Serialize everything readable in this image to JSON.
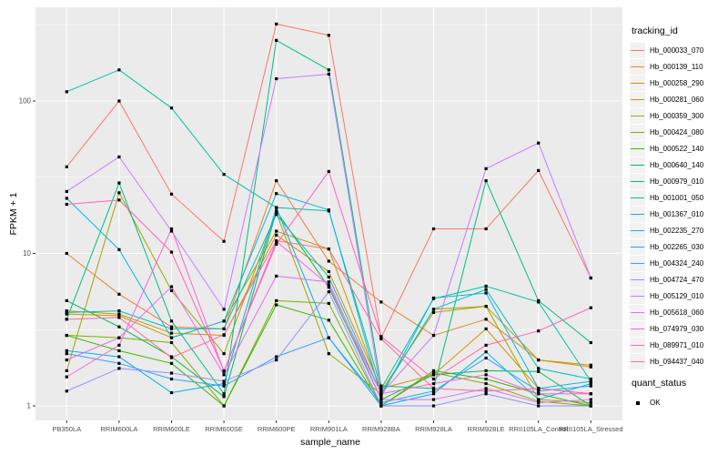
{
  "chart_data": {
    "type": "line",
    "title": "",
    "xlabel": "sample_name",
    "ylabel": "FPKM + 1",
    "y_scale": "log10",
    "y_ticks": [
      1,
      10,
      100
    ],
    "y_minor_ticks": [
      3.162,
      31.62,
      316.2
    ],
    "ylim": [
      0.93,
      420
    ],
    "grid": "on",
    "legend_title": "tracking_id",
    "legend_position": "right",
    "categories": [
      "PB350LA",
      "RRIM600LA",
      "RRIM600LE",
      "RRIM600SE",
      "RRIM600PE",
      "RRIM901LA",
      "RRIM928BA",
      "RRIM928LA",
      "RRIM928LE",
      "RRII105LA_Control",
      "RRII105LA_Stressed"
    ],
    "series": [
      {
        "name": "Hb_000033_070",
        "color": "#F8766D",
        "values": [
          37,
          100,
          24.5,
          12,
          320,
          270,
          2.8,
          14.5,
          14.5,
          35,
          6.9
        ]
      },
      {
        "name": "Hb_000139_110",
        "color": "#EA8331",
        "values": [
          10,
          5.4,
          3.3,
          3.2,
          30,
          8.9,
          4.8,
          2.9,
          3.7,
          2.0,
          1.8
        ]
      },
      {
        "name": "Hb_000258_290",
        "color": "#D89000",
        "values": [
          4.2,
          4.0,
          3.0,
          2.9,
          13.2,
          7.6,
          1.3,
          1.6,
          3.2,
          1.3,
          1.2
        ]
      },
      {
        "name": "Hb_000281_060",
        "color": "#C09B00",
        "values": [
          4.0,
          3.9,
          2.8,
          3.6,
          14,
          10.7,
          1.25,
          4.1,
          4.5,
          2.0,
          1.85
        ]
      },
      {
        "name": "Hb_000359_300",
        "color": "#A3A500",
        "values": [
          1.7,
          25,
          5.7,
          2.2,
          18.5,
          2.2,
          1.2,
          4.3,
          4.5,
          1.1,
          1.05
        ]
      },
      {
        "name": "Hb_000424_080",
        "color": "#7CAE00",
        "values": [
          2.9,
          2.8,
          2.6,
          1.0,
          4.9,
          4.7,
          1.0,
          1.65,
          1.4,
          1.07,
          1.0
        ]
      },
      {
        "name": "Hb_000522_140",
        "color": "#39B600",
        "values": [
          2.9,
          2.3,
          1.9,
          1.0,
          4.6,
          3.65,
          1.0,
          1.7,
          1.5,
          1.2,
          1.0
        ]
      },
      {
        "name": "Hb_000640_140",
        "color": "#00BB4E",
        "values": [
          4.9,
          3.3,
          2.1,
          1.15,
          19,
          6.0,
          1.1,
          1.6,
          1.7,
          1.68,
          1.0
        ]
      },
      {
        "name": "Hb_000979_010",
        "color": "#00BF7D",
        "values": [
          3.7,
          29,
          3.6,
          1.2,
          250,
          160,
          1.35,
          1.3,
          30,
          4.9,
          2.6
        ]
      },
      {
        "name": "Hb_001001_050",
        "color": "#00C1A3",
        "values": [
          115,
          160,
          90,
          33,
          20,
          19,
          1.3,
          5.05,
          6.1,
          4.8,
          1.45
        ]
      },
      {
        "name": "Hb_001367_010",
        "color": "#00BFC4",
        "values": [
          4.1,
          4.2,
          3.2,
          3.2,
          18,
          7.0,
          1.2,
          4.3,
          5.8,
          1.76,
          1.5
        ]
      },
      {
        "name": "Hb_002235_270",
        "color": "#00BAE0",
        "values": [
          23,
          10.6,
          2.8,
          3.6,
          24.7,
          19.3,
          1.15,
          5.1,
          5.5,
          1.3,
          1.45
        ]
      },
      {
        "name": "Hb_002265_030",
        "color": "#00B0F6",
        "values": [
          2.3,
          2.1,
          1.22,
          1.4,
          20,
          2.8,
          1.0,
          1.2,
          2.26,
          1.1,
          1.4
        ]
      },
      {
        "name": "Hb_004324_240",
        "color": "#35A2FF",
        "values": [
          2.2,
          1.9,
          1.5,
          1.35,
          2.1,
          2.8,
          1.05,
          1.25,
          2.06,
          1.25,
          1.35
        ]
      },
      {
        "name": "Hb_004724_470",
        "color": "#9590FF",
        "values": [
          1.25,
          1.76,
          1.64,
          1.45,
          2.0,
          5.6,
          1.0,
          1.0,
          1.2,
          1.0,
          1.0
        ]
      },
      {
        "name": "Hb_005129_010",
        "color": "#C77CFF",
        "values": [
          25.5,
          43,
          14,
          4.3,
          140,
          150,
          1.2,
          2.9,
          36,
          53,
          6.9
        ]
      },
      {
        "name": "Hb_005618_060",
        "color": "#E76BF3",
        "values": [
          2.0,
          2.8,
          6.05,
          1.6,
          7.1,
          6.5,
          1.1,
          1.1,
          1.3,
          1.05,
          1.1
        ]
      },
      {
        "name": "Hb_074979_030",
        "color": "#FA62DB",
        "values": [
          1.55,
          2.5,
          14.5,
          1.68,
          12,
          6.2,
          1.2,
          1.4,
          1.6,
          1.2,
          1.2
        ]
      },
      {
        "name": "Hb_089971_010",
        "color": "#FF62BC",
        "values": [
          21,
          22.4,
          10.2,
          1.7,
          11.5,
          34.5,
          2.85,
          1.5,
          2.5,
          3.1,
          4.4
        ]
      },
      {
        "name": "Hb_094437_040",
        "color": "#FF6A98",
        "values": [
          3.7,
          3.8,
          2.07,
          2.93,
          12.1,
          10.7,
          2.75,
          1.3,
          1.25,
          1.3,
          1.2
        ]
      }
    ],
    "quant_legend": {
      "title": "quant_status",
      "items": [
        {
          "label": "OK",
          "marker": "black-square"
        }
      ]
    },
    "point_marker": "black-square"
  },
  "colors": {
    "panel_background": "#EBEBEB",
    "gridline": "#FFFFFF",
    "tick_label": "#4D4D4D",
    "axis_title": "#000000",
    "point": "#000000",
    "legend_key_background": "#F2F2F2"
  }
}
